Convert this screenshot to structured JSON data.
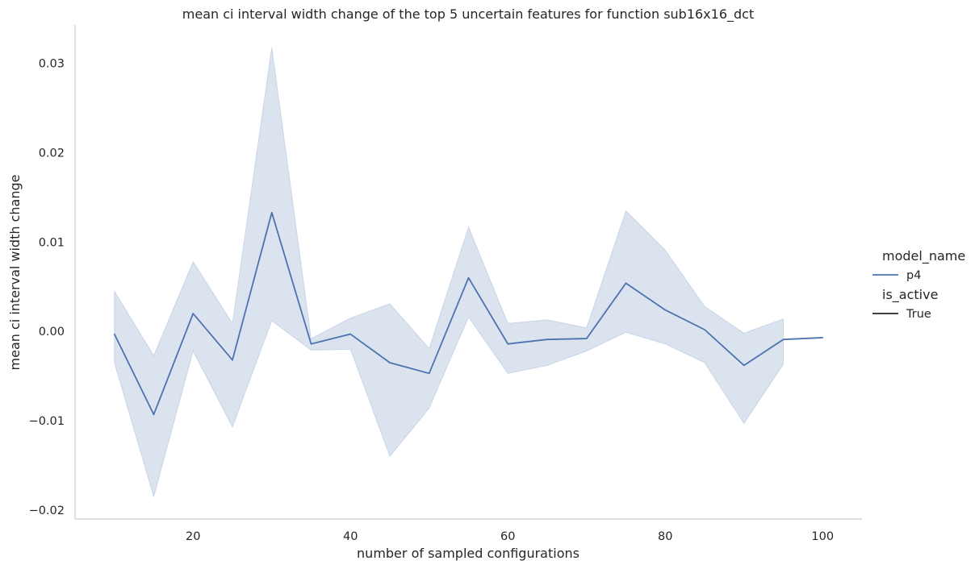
{
  "chart_data": {
    "type": "line",
    "title": "mean ci interval width change of the top 5 uncertain features for function sub16x16_dct",
    "xlabel": "number of sampled configurations",
    "ylabel": "mean ci interval width change",
    "xlim": [
      5,
      105
    ],
    "ylim": [
      -0.021,
      0.0343
    ],
    "x_ticks": [
      20,
      40,
      60,
      80,
      100
    ],
    "y_ticks": [
      -0.02,
      -0.01,
      0.0,
      0.01,
      0.02,
      0.03
    ],
    "x_tick_labels": [
      "20",
      "40",
      "60",
      "80",
      "100"
    ],
    "y_tick_labels": [
      "−0.02",
      "−0.01",
      "0.00",
      "0.01",
      "0.02",
      "0.03"
    ],
    "grid": false,
    "legend": {
      "placement": "right",
      "groups": [
        {
          "title": "model_name",
          "entries": [
            {
              "label": "p4",
              "color": "#4c72b0"
            }
          ]
        },
        {
          "title": "is_active",
          "entries": [
            {
              "label": "True",
              "color": "#262626"
            }
          ]
        }
      ]
    },
    "series": [
      {
        "name": "p4",
        "color": "#4c72b0",
        "x": [
          10,
          15,
          20,
          25,
          30,
          35,
          40,
          45,
          50,
          55,
          60,
          65,
          70,
          75,
          80,
          85,
          90,
          95,
          100
        ],
        "y": [
          -0.0003,
          -0.0093,
          0.002,
          -0.0032,
          0.0133,
          -0.0014,
          -0.0003,
          -0.0035,
          -0.0047,
          0.006,
          -0.0014,
          -0.0009,
          -0.0008,
          0.0054,
          0.0024,
          0.0002,
          -0.0038,
          -0.0009,
          -0.0007
        ],
        "ci_lower": [
          -0.0035,
          -0.0185,
          -0.0022,
          -0.0107,
          0.0012,
          -0.0021,
          -0.002,
          -0.014,
          -0.0086,
          0.0016,
          -0.0047,
          -0.0038,
          -0.0022,
          -0.0001,
          -0.0014,
          -0.0035,
          -0.0103,
          -0.0037,
          null
        ],
        "ci_upper": [
          0.0045,
          -0.0027,
          0.0078,
          0.0009,
          0.0318,
          -0.0008,
          0.0015,
          0.0031,
          -0.0019,
          0.0117,
          0.0009,
          0.0013,
          0.0004,
          0.0135,
          0.0091,
          0.0028,
          -0.0002,
          0.0014,
          null
        ]
      }
    ]
  }
}
